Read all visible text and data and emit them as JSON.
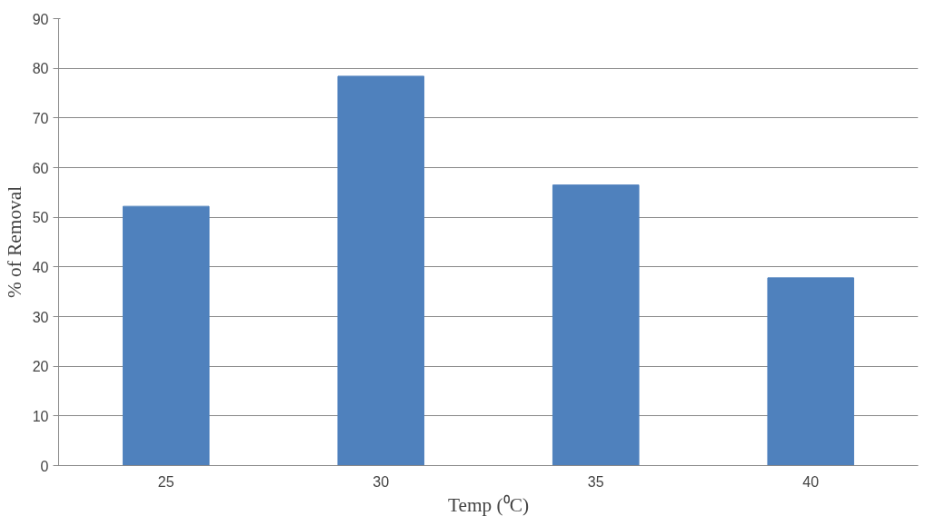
{
  "chart_data": {
    "type": "bar",
    "xlabel": "Temp (⁰C)",
    "ylabel": "% of Removal",
    "categories": [
      "25",
      "30",
      "35",
      "40"
    ],
    "values": [
      52.2,
      78.4,
      56.5,
      37.8
    ],
    "color": "#4f81bd",
    "ylim": [
      0,
      90
    ],
    "yticks": [
      0,
      10,
      20,
      30,
      40,
      50,
      60,
      70,
      80,
      90
    ],
    "grid": "y"
  }
}
